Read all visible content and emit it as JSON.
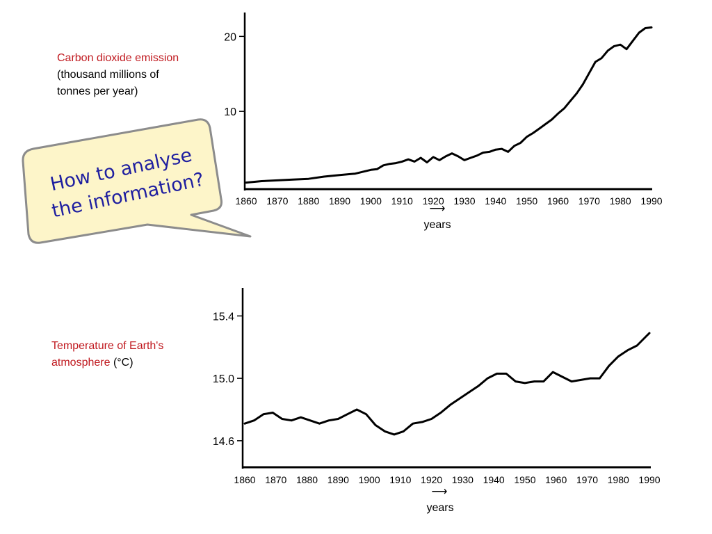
{
  "callout": {
    "line1": "How to analyse",
    "line2": "the information?"
  },
  "chart_data": [
    {
      "type": "line",
      "ylabel_part1": "Carbon dioxide emission",
      "ylabel_part2": "(thousand millions of",
      "ylabel_part3": "tonnes per year)",
      "xlabel": "years",
      "x_arrow": "⟶",
      "x_ticks": [
        1860,
        1870,
        1880,
        1890,
        1900,
        1910,
        1920,
        1930,
        1940,
        1950,
        1960,
        1970,
        1980,
        1990
      ],
      "y_ticks": [
        10,
        20
      ],
      "xlim": [
        1860,
        1990
      ],
      "ylim": [
        0,
        23
      ],
      "series": [
        {
          "x": [
            1860,
            1865,
            1870,
            1875,
            1880,
            1885,
            1890,
            1895,
            1898,
            1900,
            1902,
            1904,
            1906,
            1908,
            1910,
            1912,
            1914,
            1916,
            1918,
            1920,
            1922,
            1924,
            1926,
            1928,
            1930,
            1932,
            1934,
            1936,
            1938,
            1940,
            1942,
            1944,
            1946,
            1948,
            1950,
            1952,
            1954,
            1956,
            1958,
            1960,
            1962,
            1964,
            1966,
            1968,
            1970,
            1972,
            1974,
            1976,
            1978,
            1980,
            1982,
            1984,
            1986,
            1988,
            1990
          ],
          "y": [
            0.5,
            0.7,
            0.8,
            0.9,
            1.0,
            1.3,
            1.5,
            1.7,
            2.0,
            2.2,
            2.3,
            2.8,
            3.0,
            3.1,
            3.3,
            3.6,
            3.3,
            3.8,
            3.2,
            3.9,
            3.5,
            4.0,
            4.4,
            4.0,
            3.5,
            3.8,
            4.1,
            4.5,
            4.6,
            4.9,
            5.0,
            4.6,
            5.4,
            5.8,
            6.6,
            7.1,
            7.7,
            8.3,
            8.9,
            9.7,
            10.4,
            11.4,
            12.4,
            13.6,
            15.1,
            16.6,
            17.1,
            18.1,
            18.7,
            18.9,
            18.3,
            19.4,
            20.5,
            21.1,
            21.2
          ]
        }
      ]
    },
    {
      "type": "line",
      "ylabel_part1": "Temperature of Earth's",
      "ylabel_part2": "atmosphere",
      "ylabel_part3": "(°C)",
      "xlabel": "years",
      "x_arrow": "⟶",
      "x_ticks": [
        1860,
        1870,
        1880,
        1890,
        1900,
        1910,
        1920,
        1930,
        1940,
        1950,
        1960,
        1970,
        1980,
        1990
      ],
      "y_ticks": [
        14.6,
        15.0,
        15.4
      ],
      "xlim": [
        1860,
        1990
      ],
      "ylim": [
        14.43,
        15.58
      ],
      "series": [
        {
          "x": [
            1860,
            1863,
            1866,
            1869,
            1872,
            1875,
            1878,
            1881,
            1884,
            1887,
            1890,
            1893,
            1896,
            1899,
            1902,
            1905,
            1908,
            1911,
            1914,
            1917,
            1920,
            1923,
            1926,
            1929,
            1932,
            1935,
            1938,
            1941,
            1944,
            1947,
            1950,
            1953,
            1956,
            1959,
            1962,
            1965,
            1968,
            1971,
            1974,
            1977,
            1980,
            1983,
            1986,
            1989,
            1990
          ],
          "y": [
            14.71,
            14.73,
            14.77,
            14.78,
            14.74,
            14.73,
            14.75,
            14.73,
            14.71,
            14.73,
            14.74,
            14.77,
            14.8,
            14.77,
            14.7,
            14.66,
            14.64,
            14.66,
            14.71,
            14.72,
            14.74,
            14.78,
            14.83,
            14.87,
            14.91,
            14.95,
            15.0,
            15.03,
            15.03,
            14.98,
            14.97,
            14.98,
            14.98,
            15.04,
            15.01,
            14.98,
            14.99,
            15.0,
            15.0,
            15.08,
            15.14,
            15.18,
            15.21,
            15.27,
            15.29
          ]
        }
      ]
    }
  ]
}
